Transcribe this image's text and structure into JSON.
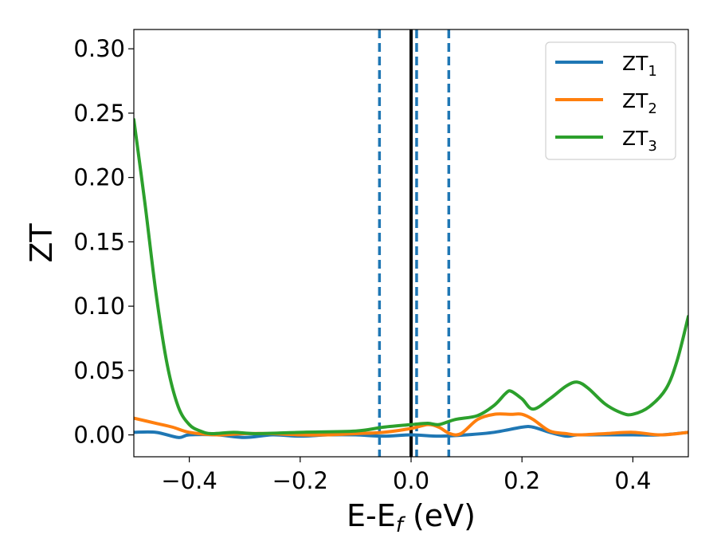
{
  "chart_data": {
    "type": "line",
    "xlabel": "E-E",
    "xlabel_sub": "f",
    "xlabel_unit": " (eV)",
    "ylabel": "ZT",
    "xlim": [
      -0.5,
      0.5
    ],
    "ylim": [
      -0.017,
      0.315
    ],
    "xticks": [
      -0.4,
      -0.2,
      0.0,
      0.2,
      0.4
    ],
    "xtick_labels": [
      "−0.4",
      "−0.2",
      "0.0",
      "0.2",
      "0.4"
    ],
    "yticks": [
      0.0,
      0.05,
      0.1,
      0.15,
      0.2,
      0.25,
      0.3
    ],
    "ytick_labels": [
      "0.00",
      "0.05",
      "0.10",
      "0.15",
      "0.20",
      "0.25",
      "0.30"
    ],
    "legend_position": "top-right",
    "grid": false,
    "reference_lines": [
      {
        "x": 0.0,
        "style": "solid",
        "color": "#000000"
      },
      {
        "x": -0.057,
        "style": "dashed",
        "color": "#1f77b4"
      },
      {
        "x": 0.01,
        "style": "dashed",
        "color": "#1f77b4"
      },
      {
        "x": 0.068,
        "style": "dashed",
        "color": "#1f77b4"
      }
    ],
    "series": [
      {
        "name": "ZT",
        "name_sub": "1",
        "color": "#1f77b4",
        "x": [
          -0.5,
          -0.46,
          -0.42,
          -0.4,
          -0.35,
          -0.3,
          -0.25,
          -0.2,
          -0.15,
          -0.1,
          -0.05,
          0.0,
          0.05,
          0.1,
          0.15,
          0.2,
          0.22,
          0.25,
          0.28,
          0.3,
          0.35,
          0.4,
          0.45,
          0.5
        ],
        "y": [
          0.002,
          0.002,
          -0.002,
          0.0,
          0.0,
          -0.002,
          0.0,
          -0.001,
          0.0,
          0.0,
          -0.001,
          0.0,
          -0.001,
          0.0,
          0.002,
          0.006,
          0.006,
          0.002,
          -0.001,
          0.0,
          0.0,
          0.0,
          0.0,
          0.002
        ]
      },
      {
        "name": "ZT",
        "name_sub": "2",
        "color": "#ff7f0e",
        "x": [
          -0.5,
          -0.46,
          -0.43,
          -0.4,
          -0.35,
          -0.3,
          -0.25,
          -0.2,
          -0.15,
          -0.1,
          -0.05,
          0.0,
          0.03,
          0.05,
          0.07,
          0.09,
          0.12,
          0.15,
          0.18,
          0.2,
          0.22,
          0.25,
          0.28,
          0.3,
          0.35,
          0.4,
          0.45,
          0.5
        ],
        "y": [
          0.013,
          0.009,
          0.006,
          0.002,
          0.0,
          0.001,
          0.001,
          0.0,
          0.0,
          0.001,
          0.002,
          0.005,
          0.008,
          0.006,
          0.001,
          0.001,
          0.012,
          0.016,
          0.016,
          0.016,
          0.012,
          0.003,
          0.001,
          0.0,
          0.001,
          0.002,
          0.0,
          0.002
        ]
      },
      {
        "name": "ZT",
        "name_sub": "3",
        "color": "#2ca02c",
        "x": [
          -0.5,
          -0.48,
          -0.46,
          -0.44,
          -0.42,
          -0.4,
          -0.38,
          -0.36,
          -0.32,
          -0.28,
          -0.2,
          -0.1,
          -0.05,
          0.0,
          0.03,
          0.05,
          0.08,
          0.12,
          0.15,
          0.17,
          0.18,
          0.2,
          0.22,
          0.25,
          0.28,
          0.3,
          0.32,
          0.35,
          0.38,
          0.4,
          0.43,
          0.46,
          0.48,
          0.5
        ],
        "y": [
          0.245,
          0.18,
          0.11,
          0.055,
          0.022,
          0.008,
          0.003,
          0.001,
          0.002,
          0.001,
          0.002,
          0.003,
          0.006,
          0.008,
          0.009,
          0.008,
          0.012,
          0.015,
          0.023,
          0.032,
          0.034,
          0.028,
          0.02,
          0.028,
          0.038,
          0.041,
          0.036,
          0.024,
          0.017,
          0.016,
          0.022,
          0.036,
          0.058,
          0.092
        ]
      }
    ]
  }
}
